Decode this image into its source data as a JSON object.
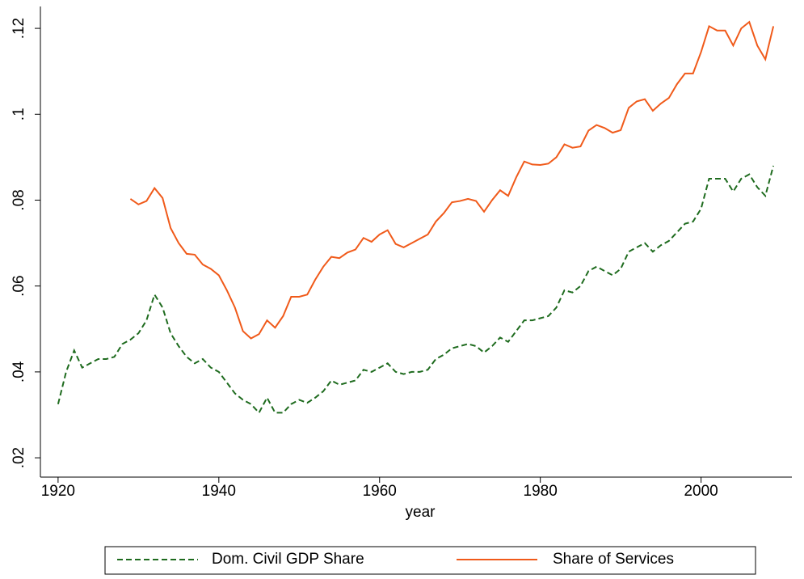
{
  "chart_data": {
    "type": "line",
    "x": [
      1920,
      1921,
      1922,
      1923,
      1924,
      1925,
      1926,
      1927,
      1928,
      1929,
      1930,
      1931,
      1932,
      1933,
      1934,
      1935,
      1936,
      1937,
      1938,
      1939,
      1940,
      1941,
      1942,
      1943,
      1944,
      1945,
      1946,
      1947,
      1948,
      1949,
      1950,
      1951,
      1952,
      1953,
      1954,
      1955,
      1956,
      1957,
      1958,
      1959,
      1960,
      1961,
      1962,
      1963,
      1964,
      1965,
      1966,
      1967,
      1968,
      1969,
      1970,
      1971,
      1972,
      1973,
      1974,
      1975,
      1976,
      1977,
      1978,
      1979,
      1980,
      1981,
      1982,
      1983,
      1984,
      1985,
      1986,
      1987,
      1988,
      1989,
      1990,
      1991,
      1992,
      1993,
      1994,
      1995,
      1996,
      1997,
      1998,
      1999,
      2000,
      2001,
      2002,
      2003,
      2004,
      2005,
      2006,
      2007,
      2008,
      2009
    ],
    "series": [
      {
        "name": "Dom. Civil GDP Share",
        "color": "#1e6b1e",
        "dash": true,
        "values": [
          0.0325,
          0.04,
          0.045,
          0.041,
          0.042,
          0.043,
          0.043,
          0.0435,
          0.0465,
          0.0475,
          0.049,
          0.052,
          0.058,
          0.055,
          0.049,
          0.046,
          0.0435,
          0.042,
          0.043,
          0.041,
          0.04,
          0.0375,
          0.035,
          0.0335,
          0.0325,
          0.0305,
          0.034,
          0.0305,
          0.0305,
          0.0325,
          0.0335,
          0.0328,
          0.034,
          0.0355,
          0.038,
          0.037,
          0.0375,
          0.038,
          0.0405,
          0.04,
          0.041,
          0.042,
          0.04,
          0.0395,
          0.04,
          0.04,
          0.0405,
          0.043,
          0.044,
          0.0455,
          0.046,
          0.0465,
          0.046,
          0.0445,
          0.046,
          0.048,
          0.047,
          0.0495,
          0.052,
          0.052,
          0.0525,
          0.053,
          0.055,
          0.059,
          0.0585,
          0.06,
          0.0635,
          0.0645,
          0.0635,
          0.0625,
          0.064,
          0.068,
          0.069,
          0.07,
          0.068,
          0.0695,
          0.0705,
          0.0725,
          0.0745,
          0.075,
          0.078,
          0.085,
          0.085,
          0.085,
          0.082,
          0.085,
          0.086,
          0.083,
          0.081,
          0.088
        ]
      },
      {
        "name": "Share of Services",
        "color": "#f05a1a",
        "dash": false,
        "values": [
          null,
          null,
          null,
          null,
          null,
          null,
          null,
          null,
          null,
          0.0803,
          0.079,
          0.0798,
          0.0828,
          0.0805,
          0.0735,
          0.07,
          0.0675,
          0.0673,
          0.065,
          0.064,
          0.0625,
          0.059,
          0.055,
          0.0495,
          0.0478,
          0.0488,
          0.052,
          0.0503,
          0.053,
          0.0575,
          0.0575,
          0.058,
          0.0615,
          0.0645,
          0.0668,
          0.0665,
          0.0678,
          0.0685,
          0.0712,
          0.0703,
          0.072,
          0.073,
          0.0698,
          0.069,
          0.07,
          0.071,
          0.072,
          0.075,
          0.077,
          0.0795,
          0.0798,
          0.0803,
          0.0798,
          0.0773,
          0.08,
          0.0823,
          0.081,
          0.0853,
          0.089,
          0.0883,
          0.0882,
          0.0885,
          0.09,
          0.093,
          0.0922,
          0.0925,
          0.0962,
          0.0975,
          0.0968,
          0.0957,
          0.0963,
          0.1015,
          0.103,
          0.1035,
          0.1008,
          0.1025,
          0.1038,
          0.107,
          0.1095,
          0.1095,
          0.1145,
          0.1205,
          0.1195,
          0.1195,
          0.116,
          0.12,
          0.1215,
          0.116,
          0.1128,
          0.1205
        ]
      }
    ],
    "x_label": "year",
    "xlim": [
      1917.8,
      2011.3
    ],
    "xticks": [
      1920,
      1940,
      1960,
      1980,
      2000
    ],
    "ylim": [
      0.0155,
      0.1251
    ],
    "yticks": [
      {
        "value": 0.02,
        "label": ".02"
      },
      {
        "value": 0.04,
        "label": ".04"
      },
      {
        "value": 0.06,
        "label": ".06"
      },
      {
        "value": 0.08,
        "label": ".08"
      },
      {
        "value": 0.1,
        "label": ".1"
      },
      {
        "value": 0.12,
        "label": ".12"
      }
    ],
    "grid": false
  }
}
